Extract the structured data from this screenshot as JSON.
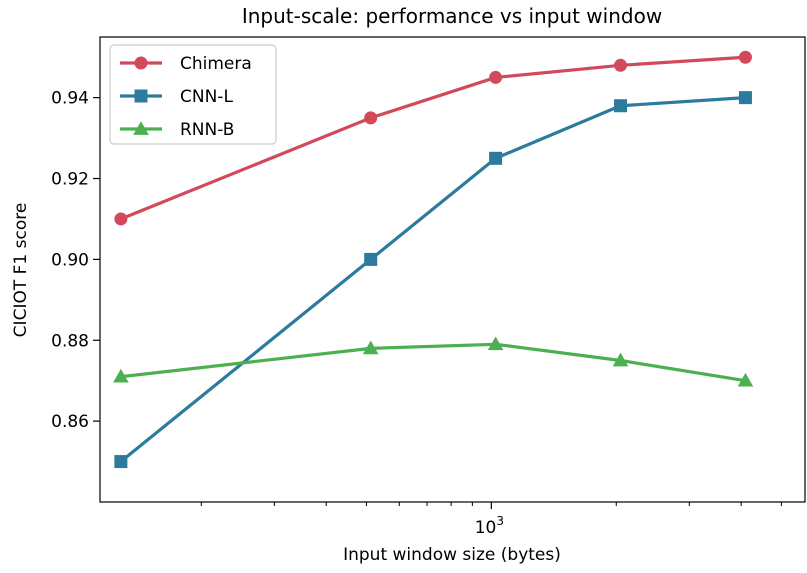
{
  "chart_data": {
    "type": "line",
    "title": "Input-scale: performance vs input window",
    "xlabel": "Input window size (bytes)",
    "ylabel": "CICIOT F1 score",
    "xscale": "log",
    "xlim": [
      114,
      5700
    ],
    "ylim": [
      0.84,
      0.955
    ],
    "x_major_ticks": [
      {
        "value": 1000,
        "base": "10",
        "exp": "3"
      }
    ],
    "x_minor_ticks": [
      200,
      300,
      400,
      500,
      600,
      700,
      800,
      900,
      2000,
      3000,
      4000,
      5000
    ],
    "y_ticks": [
      {
        "value": 0.86,
        "label": "0.86"
      },
      {
        "value": 0.88,
        "label": "0.88"
      },
      {
        "value": 0.9,
        "label": "0.90"
      },
      {
        "value": 0.92,
        "label": "0.92"
      },
      {
        "value": 0.94,
        "label": "0.94"
      }
    ],
    "x": [
      128,
      512,
      1024,
      2048,
      4096
    ],
    "series": [
      {
        "name": "Chimera",
        "color": "#d1495b",
        "marker": "circle",
        "values": [
          0.91,
          0.935,
          0.945,
          0.948,
          0.95
        ]
      },
      {
        "name": "CNN-L",
        "color": "#2c7a9c",
        "marker": "square",
        "values": [
          0.85,
          0.9,
          0.925,
          0.938,
          0.94
        ]
      },
      {
        "name": "RNN-B",
        "color": "#4caf50",
        "marker": "triangle",
        "values": [
          0.871,
          0.878,
          0.879,
          0.875,
          0.87
        ]
      }
    ],
    "legend": {
      "position": "upper-left"
    },
    "grid": false
  }
}
